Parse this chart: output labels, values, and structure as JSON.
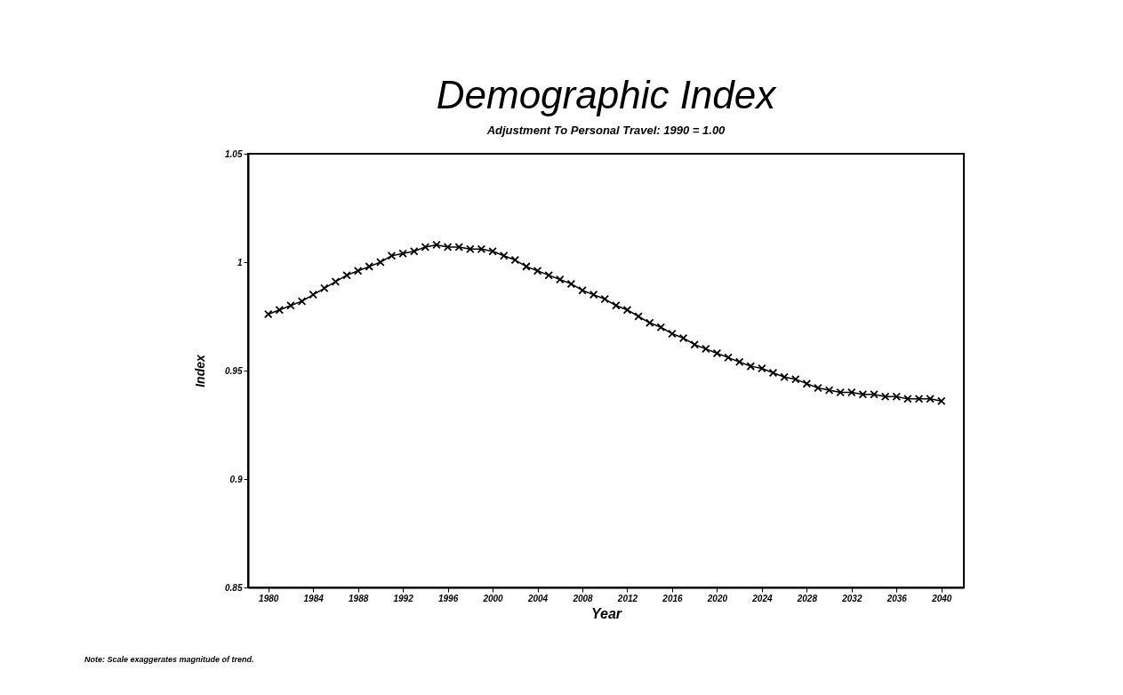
{
  "chart_data": {
    "type": "line",
    "title": "Demographic Index",
    "subtitle": "Adjustment To Personal Travel:  1990 = 1.00",
    "xlabel": "Year",
    "ylabel": "Index",
    "x": [
      1980,
      1981,
      1982,
      1983,
      1984,
      1985,
      1986,
      1987,
      1988,
      1989,
      1990,
      1991,
      1992,
      1993,
      1994,
      1995,
      1996,
      1997,
      1998,
      1999,
      2000,
      2001,
      2002,
      2003,
      2004,
      2005,
      2006,
      2007,
      2008,
      2009,
      2010,
      2011,
      2012,
      2013,
      2014,
      2015,
      2016,
      2017,
      2018,
      2019,
      2020,
      2021,
      2022,
      2023,
      2024,
      2025,
      2026,
      2027,
      2028,
      2029,
      2030,
      2031,
      2032,
      2033,
      2034,
      2035,
      2036,
      2037,
      2038,
      2039,
      2040
    ],
    "series": [
      {
        "color": "#000000",
        "values": [
          0.976,
          0.978,
          0.98,
          0.982,
          0.985,
          0.988,
          0.991,
          0.994,
          0.996,
          0.998,
          1.0,
          1.003,
          1.004,
          1.005,
          1.007,
          1.008,
          1.007,
          1.007,
          1.006,
          1.006,
          1.005,
          1.003,
          1.001,
          0.998,
          0.996,
          0.994,
          0.992,
          0.99,
          0.987,
          0.985,
          0.983,
          0.98,
          0.978,
          0.975,
          0.972,
          0.97,
          0.967,
          0.965,
          0.962,
          0.96,
          0.958,
          0.956,
          0.954,
          0.952,
          0.951,
          0.949,
          0.947,
          0.946,
          0.944,
          0.942,
          0.941,
          0.94,
          0.94,
          0.939,
          0.939,
          0.938,
          0.938,
          0.937,
          0.937,
          0.937,
          0.936
        ]
      }
    ],
    "xlim": [
      1978.2,
      2042
    ],
    "xticks": [
      1980,
      1984,
      1988,
      1992,
      1996,
      2000,
      2004,
      2008,
      2012,
      2016,
      2020,
      2024,
      2028,
      2032,
      2036,
      2040
    ],
    "ylim": [
      0.85,
      1.05
    ],
    "yticks": [
      0.85,
      0.9,
      0.95,
      1,
      1.05
    ],
    "marker": "cross",
    "line_style": "solid",
    "grid": false,
    "annotations": [
      "Note:  Scale exaggerates magnitude of trend."
    ]
  }
}
